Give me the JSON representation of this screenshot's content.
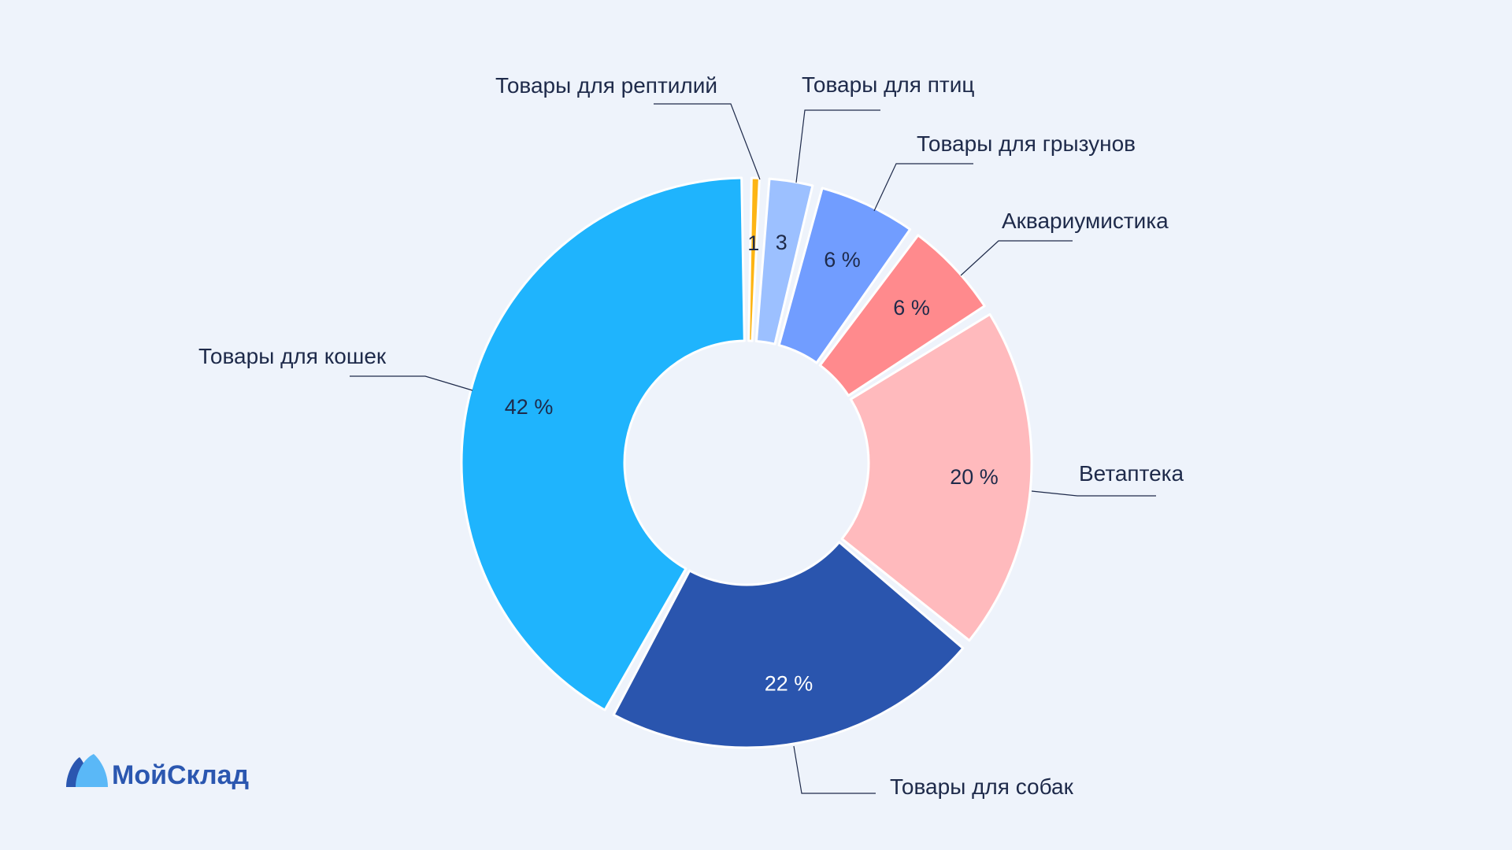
{
  "chart_data": {
    "type": "pie",
    "donut": true,
    "title": "",
    "categories": [
      "Товары для рептилий",
      "Товары для птиц",
      "Товары для грызунов",
      "Аквариумистика",
      "Ветаптека",
      "Товары для собак",
      "Товары для кошек"
    ],
    "values": [
      1,
      3,
      6,
      6,
      20,
      22,
      42
    ],
    "value_labels": [
      "1",
      "3",
      "6 %",
      "6 %",
      "20 %",
      "22 %",
      "42 %"
    ],
    "colors": [
      "#fdb515",
      "#9cc0ff",
      "#719dff",
      "#ff8a8d",
      "#ffbabd",
      "#2a55ae",
      "#1fb4fd"
    ],
    "value_label_colors": [
      "#1e2a4a",
      "#1e2a4a",
      "#1e2a4a",
      "#1e2a4a",
      "#1e2a4a",
      "#ffffff",
      "#1e2a4a"
    ],
    "legend": "none"
  },
  "logo": {
    "text": "МойСклад",
    "color": "#2b57b0"
  }
}
